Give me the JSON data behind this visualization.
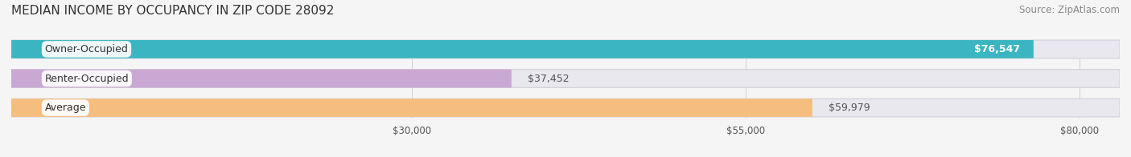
{
  "title": "MEDIAN INCOME BY OCCUPANCY IN ZIP CODE 28092",
  "source_text": "Source: ZipAtlas.com",
  "categories": [
    "Owner-Occupied",
    "Renter-Occupied",
    "Average"
  ],
  "values": [
    76547,
    37452,
    59979
  ],
  "bar_colors": [
    "#3ab5c1",
    "#c9a8d4",
    "#f5be7e"
  ],
  "bar_edge_colors": [
    "#2a9aab",
    "#b090c0",
    "#e8a860"
  ],
  "label_colors": [
    "#ffffff",
    "#7a5a9a",
    "#c07820"
  ],
  "value_labels": [
    "$76,547",
    "$37,452",
    "$59,979"
  ],
  "x_ticks": [
    30000,
    55000,
    80000
  ],
  "x_tick_labels": [
    "$30,000",
    "$55,000",
    "$80,000"
  ],
  "xlim": [
    0,
    83000
  ],
  "bg_color": "#f5f5f5",
  "bar_bg_color": "#e8e8ee",
  "title_fontsize": 11,
  "source_fontsize": 8.5,
  "bar_label_fontsize": 9,
  "value_label_fontsize": 9,
  "tick_fontsize": 8.5,
  "bar_height": 0.62,
  "bar_spacing": 1.0,
  "figsize": [
    14.06,
    1.96
  ],
  "dpi": 100
}
